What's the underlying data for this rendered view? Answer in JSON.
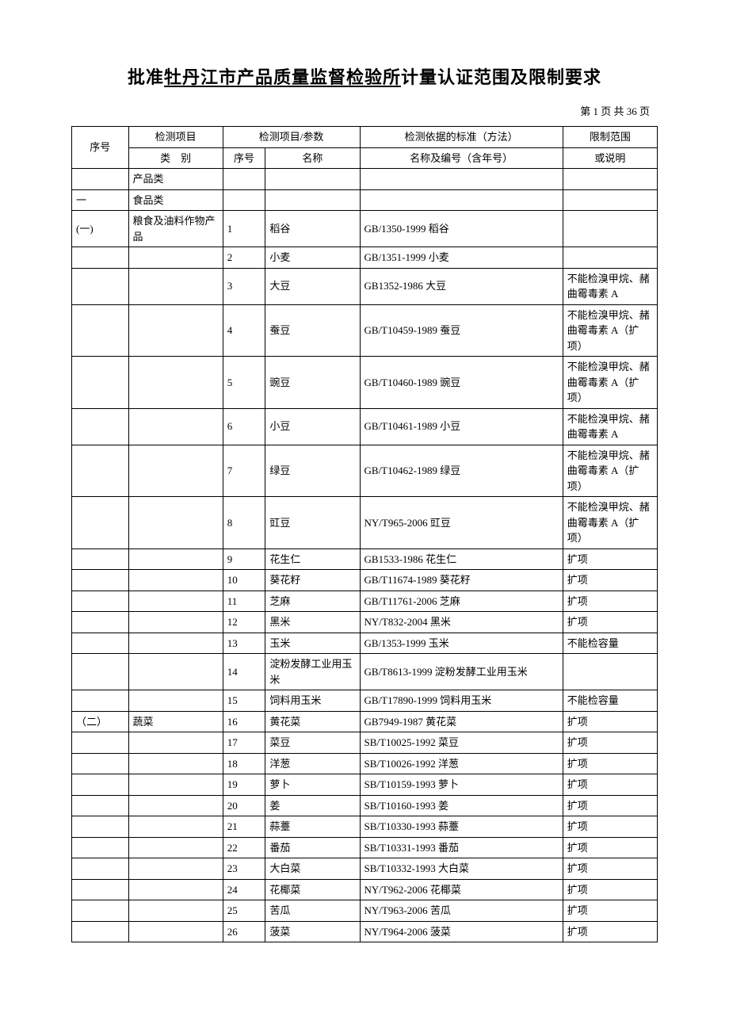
{
  "title": {
    "prefix": "批准",
    "underlined": "牡丹江市产品质量监督检验所",
    "suffix": "计量认证范围及限制要求"
  },
  "pagination": "第 1 页 共 36 页",
  "headers": {
    "seq": "序号",
    "category_top": "检测项目",
    "category_bottom": "类　别",
    "param_group": "检测项目/参数",
    "param_num": "序号",
    "param_name": "名称",
    "standard_top": "检测依据的标准（方法）",
    "standard_bottom": "名称及编号（含年号）",
    "limit_top": "限制范围",
    "limit_bottom": "或说明"
  },
  "rows": [
    {
      "seq": "",
      "cat": "产品类",
      "num": "",
      "name": "",
      "std": "",
      "limit": ""
    },
    {
      "seq": "一",
      "cat": "食品类",
      "num": "",
      "name": "",
      "std": "",
      "limit": ""
    },
    {
      "seq": "(一)",
      "cat": "粮食及油料作物产品",
      "num": "1",
      "name": "稻谷",
      "std": "GB/1350-1999 稻谷",
      "limit": ""
    },
    {
      "seq": "",
      "cat": "",
      "num": "2",
      "name": "小麦",
      "std": "GB/1351-1999 小麦",
      "limit": ""
    },
    {
      "seq": "",
      "cat": "",
      "num": "3",
      "name": "大豆",
      "std": "GB1352-1986 大豆",
      "limit": "不能检溴甲烷、赭曲霉毒素 A"
    },
    {
      "seq": "",
      "cat": "",
      "num": "4",
      "name": "蚕豆",
      "std": "GB/T10459-1989 蚕豆",
      "limit": "不能检溴甲烷、赭曲霉毒素 A（扩项）"
    },
    {
      "seq": "",
      "cat": "",
      "num": "5",
      "name": "豌豆",
      "std": "GB/T10460-1989 豌豆",
      "limit": "不能检溴甲烷、赭曲霉毒素 A（扩项）"
    },
    {
      "seq": "",
      "cat": "",
      "num": "6",
      "name": "小豆",
      "std": "GB/T10461-1989 小豆",
      "limit": "不能检溴甲烷、赭曲霉毒素 A"
    },
    {
      "seq": "",
      "cat": "",
      "num": "7",
      "name": "绿豆",
      "std": "GB/T10462-1989 绿豆",
      "limit": "不能检溴甲烷、赭曲霉毒素 A（扩项）"
    },
    {
      "seq": "",
      "cat": "",
      "num": "8",
      "name": "豇豆",
      "std": "NY/T965-2006 豇豆",
      "limit": "不能检溴甲烷、赭曲霉毒素 A（扩项）"
    },
    {
      "seq": "",
      "cat": "",
      "num": "9",
      "name": "花生仁",
      "std": "GB1533-1986 花生仁",
      "limit": "扩项"
    },
    {
      "seq": "",
      "cat": "",
      "num": "10",
      "name": "葵花籽",
      "std": "GB/T11674-1989 葵花籽",
      "limit": "扩项"
    },
    {
      "seq": "",
      "cat": "",
      "num": "11",
      "name": "芝麻",
      "std": "GB/T11761-2006 芝麻",
      "limit": "扩项"
    },
    {
      "seq": "",
      "cat": "",
      "num": "12",
      "name": "黑米",
      "std": "NY/T832-2004 黑米",
      "limit": "扩项"
    },
    {
      "seq": "",
      "cat": "",
      "num": "13",
      "name": "玉米",
      "std": "GB/1353-1999 玉米",
      "limit": "不能检容量"
    },
    {
      "seq": "",
      "cat": "",
      "num": "14",
      "name": "淀粉发酵工业用玉米",
      "std": "GB/T8613-1999 淀粉发酵工业用玉米",
      "limit": ""
    },
    {
      "seq": "",
      "cat": "",
      "num": "15",
      "name": "饲料用玉米",
      "std": "GB/T17890-1999 饲料用玉米",
      "limit": "不能检容量"
    },
    {
      "seq": "（二）",
      "cat": "蔬菜",
      "num": "16",
      "name": "黄花菜",
      "std": "GB7949-1987 黄花菜",
      "limit": "扩项"
    },
    {
      "seq": "",
      "cat": "",
      "num": "17",
      "name": "菜豆",
      "std": "SB/T10025-1992 菜豆",
      "limit": "扩项"
    },
    {
      "seq": "",
      "cat": "",
      "num": "18",
      "name": "洋葱",
      "std": "SB/T10026-1992 洋葱",
      "limit": "扩项"
    },
    {
      "seq": "",
      "cat": "",
      "num": "19",
      "name": "萝卜",
      "std": "SB/T10159-1993 萝卜",
      "limit": "扩项"
    },
    {
      "seq": "",
      "cat": "",
      "num": "20",
      "name": "姜",
      "std": "SB/T10160-1993 姜",
      "limit": "扩项"
    },
    {
      "seq": "",
      "cat": "",
      "num": "21",
      "name": "蒜薹",
      "std": "SB/T10330-1993 蒜薹",
      "limit": "扩项"
    },
    {
      "seq": "",
      "cat": "",
      "num": "22",
      "name": "番茄",
      "std": "SB/T10331-1993 番茄",
      "limit": "扩项"
    },
    {
      "seq": "",
      "cat": "",
      "num": "23",
      "name": "大白菜",
      "std": "SB/T10332-1993 大白菜",
      "limit": "扩项"
    },
    {
      "seq": "",
      "cat": "",
      "num": "24",
      "name": "花椰菜",
      "std": "NY/T962-2006 花椰菜",
      "limit": "扩项"
    },
    {
      "seq": "",
      "cat": "",
      "num": "25",
      "name": "苦瓜",
      "std": "NY/T963-2006 苦瓜",
      "limit": "扩项"
    },
    {
      "seq": "",
      "cat": "",
      "num": "26",
      "name": "菠菜",
      "std": "NY/T964-2006 菠菜",
      "limit": "扩项"
    }
  ]
}
